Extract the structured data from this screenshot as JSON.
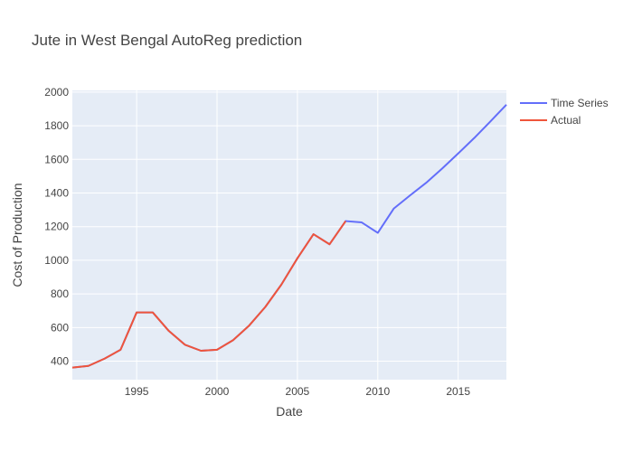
{
  "chart_data": {
    "type": "line",
    "title": "Jute in West Bengal AutoReg prediction",
    "xlabel": "Date",
    "ylabel": "Cost of Production",
    "xlim": [
      1991,
      2018
    ],
    "ylim": [
      290,
      2010
    ],
    "xticks": [
      1995,
      2000,
      2005,
      2010,
      2015
    ],
    "yticks": [
      400,
      600,
      800,
      1000,
      1200,
      1400,
      1600,
      1800,
      2000
    ],
    "grid": true,
    "legend_position": "top-right",
    "colors": {
      "plot_bg": "#E5ECF6",
      "grid": "#ffffff"
    },
    "series": [
      {
        "name": "Time Series",
        "color": "#636EFA",
        "points": [
          [
            1991,
            362
          ],
          [
            1992,
            372
          ],
          [
            1993,
            415
          ],
          [
            1994,
            468
          ],
          [
            1995,
            690
          ],
          [
            1996,
            690
          ],
          [
            1997,
            580
          ],
          [
            1998,
            498
          ],
          [
            1999,
            462
          ],
          [
            2000,
            468
          ],
          [
            2001,
            525
          ],
          [
            2002,
            612
          ],
          [
            2003,
            722
          ],
          [
            2004,
            855
          ],
          [
            2005,
            1012
          ],
          [
            2006,
            1155
          ],
          [
            2007,
            1095
          ],
          [
            2008,
            1233
          ],
          [
            2009,
            1225
          ],
          [
            2010,
            1163
          ],
          [
            2011,
            1308
          ],
          [
            2012,
            1385
          ],
          [
            2013,
            1460
          ],
          [
            2014,
            1545
          ],
          [
            2015,
            1635
          ],
          [
            2016,
            1727
          ],
          [
            2017,
            1825
          ],
          [
            2018,
            1925
          ]
        ]
      },
      {
        "name": "Actual",
        "color": "#EF553B",
        "points": [
          [
            1991,
            362
          ],
          [
            1992,
            372
          ],
          [
            1993,
            415
          ],
          [
            1994,
            468
          ],
          [
            1995,
            690
          ],
          [
            1996,
            690
          ],
          [
            1997,
            580
          ],
          [
            1998,
            498
          ],
          [
            1999,
            462
          ],
          [
            2000,
            468
          ],
          [
            2001,
            525
          ],
          [
            2002,
            612
          ],
          [
            2003,
            722
          ],
          [
            2004,
            855
          ],
          [
            2005,
            1012
          ],
          [
            2006,
            1155
          ],
          [
            2007,
            1095
          ],
          [
            2008,
            1233
          ]
        ]
      }
    ]
  }
}
